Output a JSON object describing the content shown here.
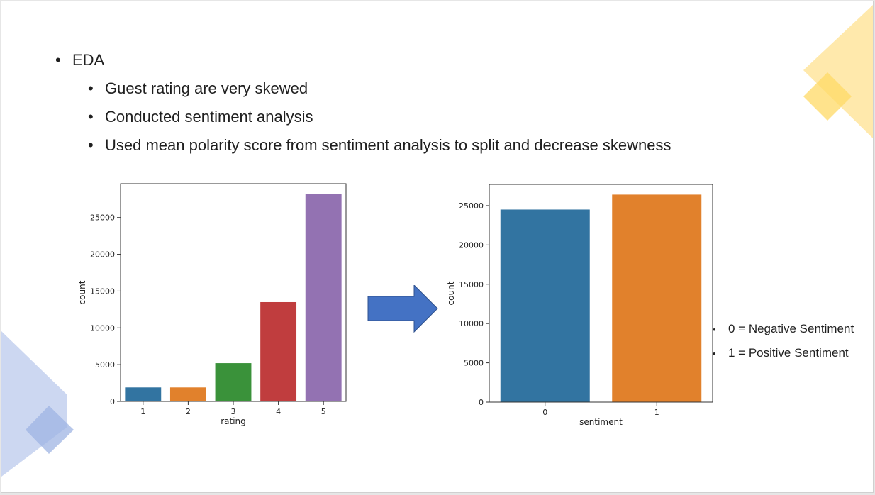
{
  "colors": {
    "blue": "#3274a1",
    "orange": "#e1812c",
    "green": "#3a923a",
    "red": "#c03d3e",
    "purple": "#9372b2",
    "arrow": "#4472c4",
    "deco_yellow": "#ffe7a3",
    "deco_blue": "#c7d3ef"
  },
  "icons": {
    "bullet": "•",
    "arrow": "right-arrow-icon"
  },
  "slide": {
    "heading": "EDA",
    "points": [
      "Guest rating are very skewed",
      "Conducted sentiment analysis",
      "Used mean polarity score from sentiment analysis to split and decrease skewness"
    ],
    "legend": [
      "0 = Negative Sentiment",
      "1 = Positive Sentiment"
    ]
  },
  "chart_data": [
    {
      "type": "bar",
      "categories": [
        "1",
        "2",
        "3",
        "4",
        "5"
      ],
      "values": [
        1900,
        1900,
        5200,
        13500,
        28200
      ],
      "colors": [
        "#3274a1",
        "#e1812c",
        "#3a923a",
        "#c03d3e",
        "#9372b2"
      ],
      "xlabel": "rating",
      "ylabel": "count",
      "ylim": [
        0,
        29600
      ],
      "yticks": [
        0,
        5000,
        10000,
        15000,
        20000,
        25000
      ],
      "grid": false
    },
    {
      "type": "bar",
      "categories": [
        "0",
        "1"
      ],
      "values": [
        24500,
        26400
      ],
      "colors": [
        "#3274a1",
        "#e1812c"
      ],
      "xlabel": "sentiment",
      "ylabel": "count",
      "ylim": [
        0,
        27700
      ],
      "yticks": [
        0,
        5000,
        10000,
        15000,
        20000,
        25000
      ],
      "grid": false
    }
  ]
}
